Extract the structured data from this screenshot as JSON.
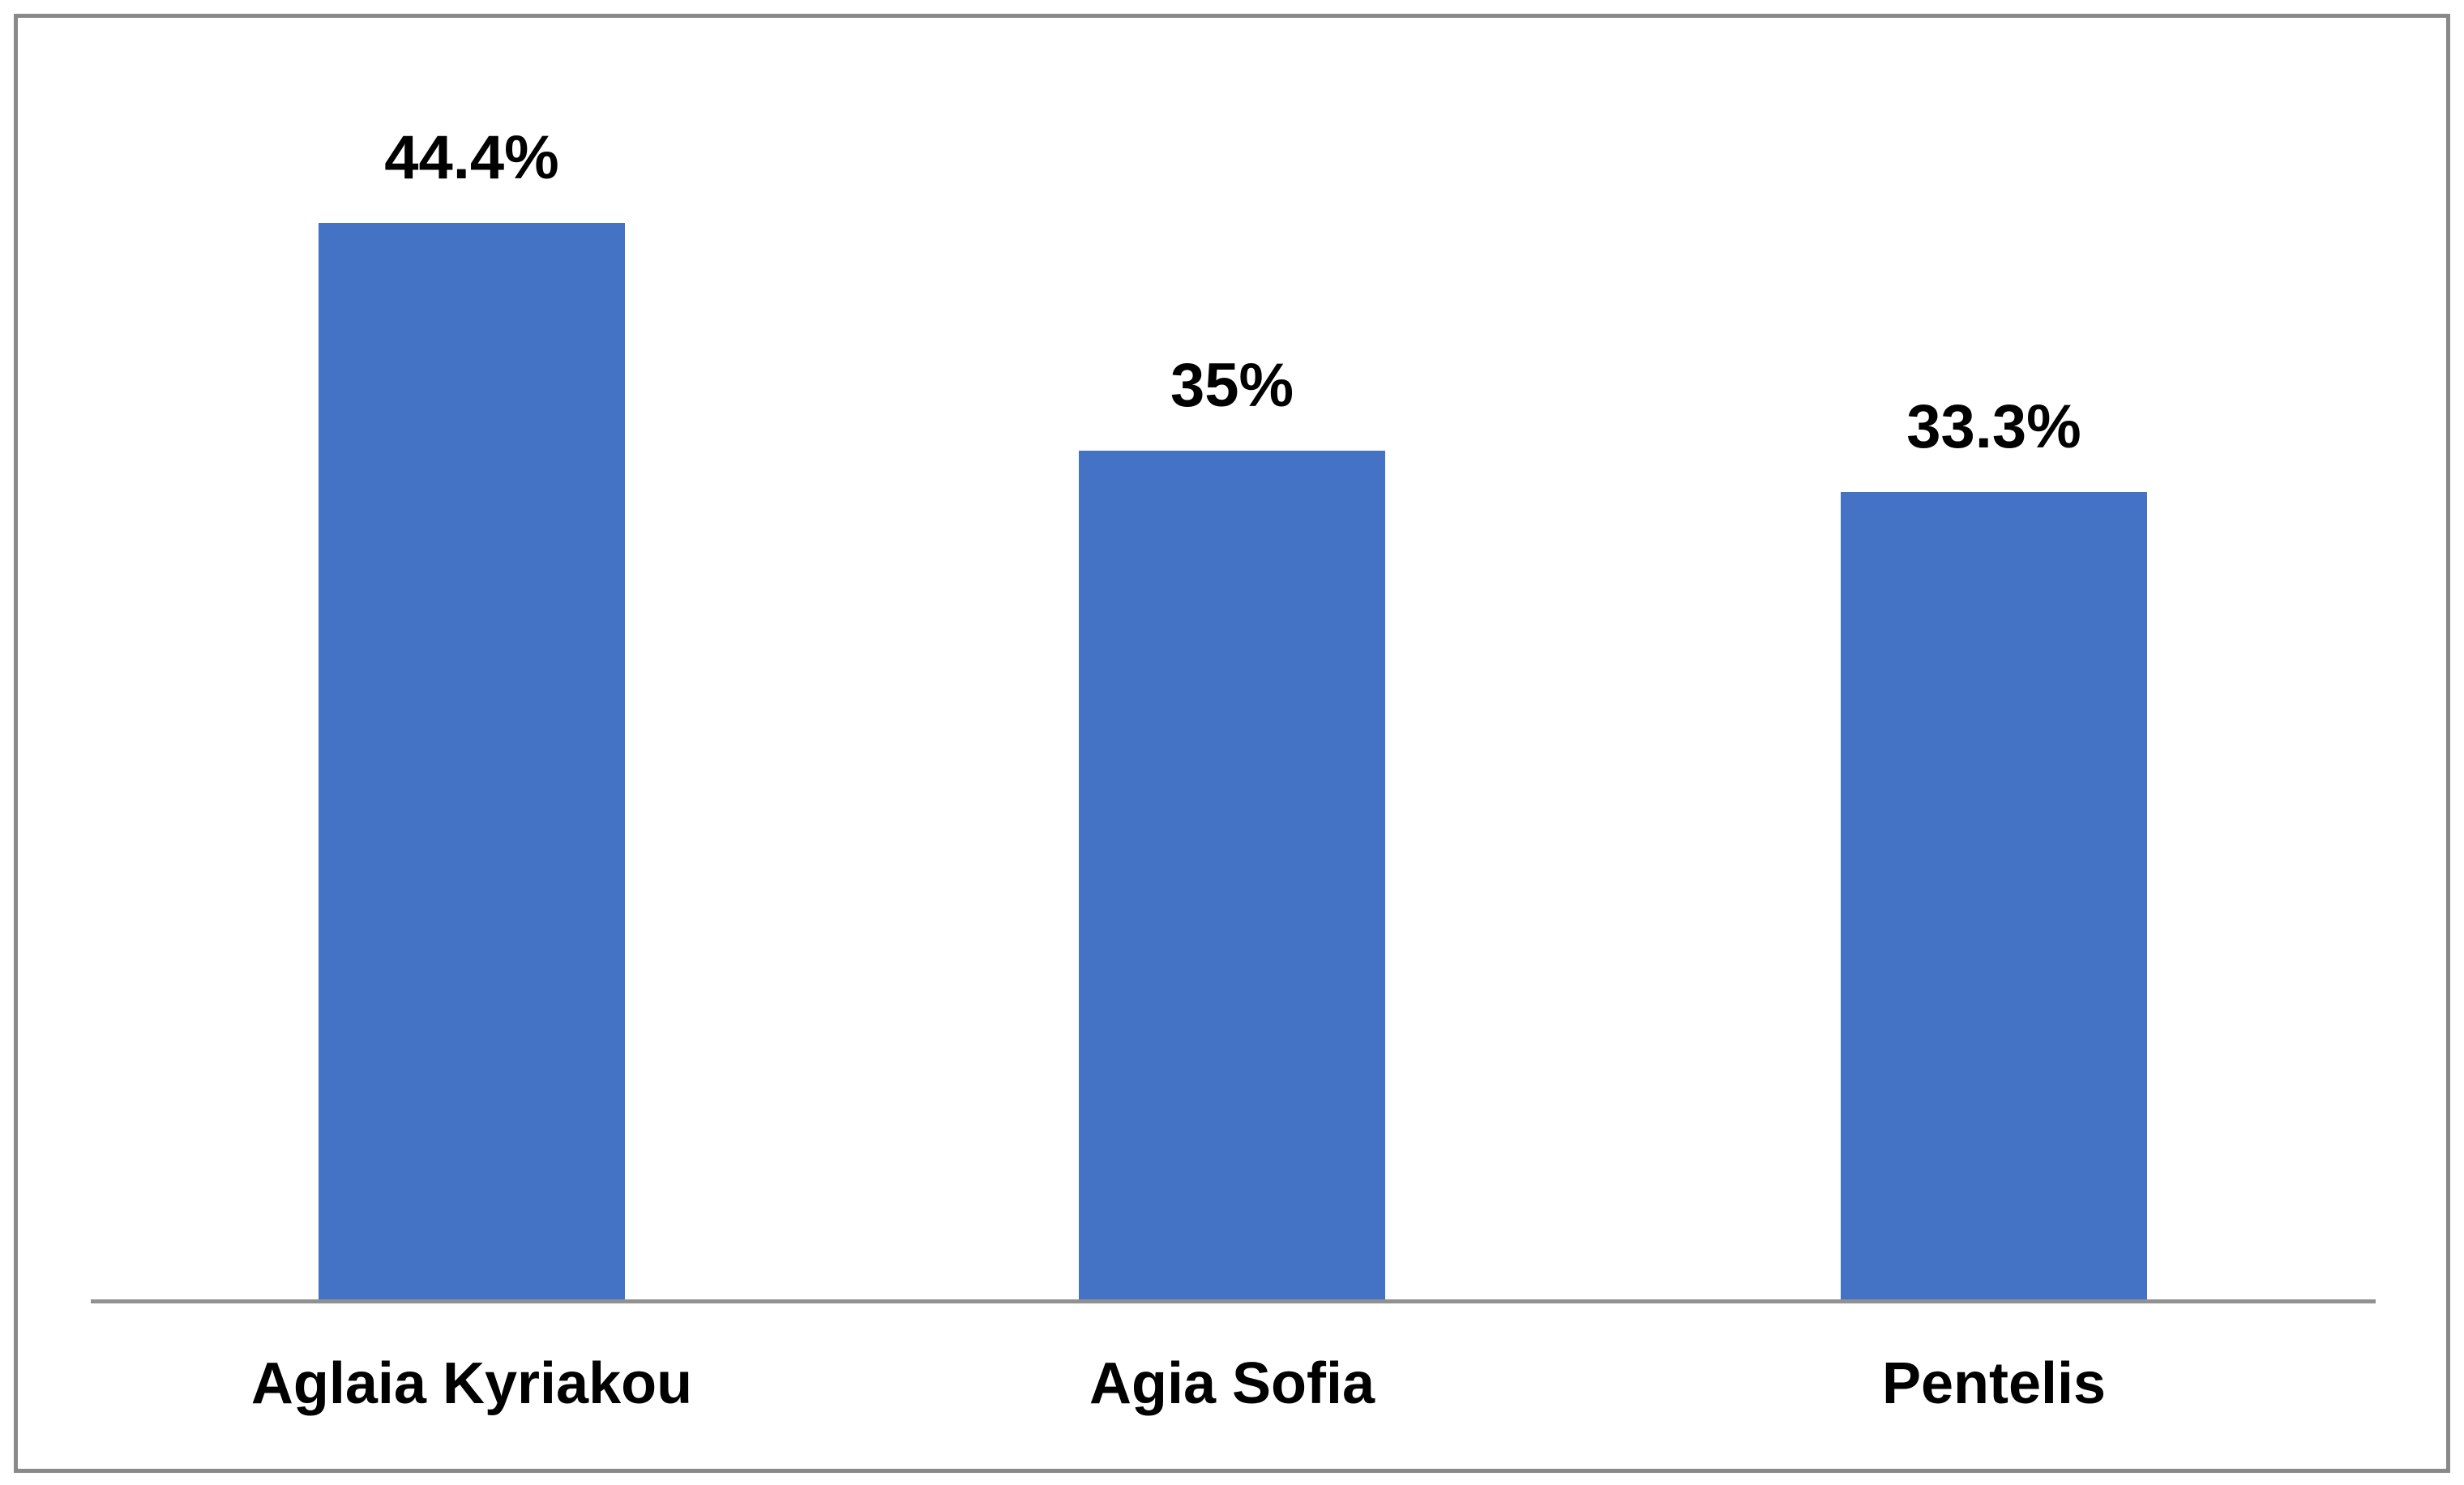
{
  "chart_data": {
    "type": "bar",
    "title": "",
    "xlabel": "",
    "ylabel": "",
    "categories": [
      "Aglaia Kyriakou",
      "Agia Sofia",
      "Pentelis"
    ],
    "values": [
      44.4,
      35,
      33.3
    ],
    "value_labels": [
      "44.4%",
      "35%",
      "33.3%"
    ],
    "series": [
      {
        "name": "",
        "values": [
          44.4,
          35,
          33.3
        ]
      }
    ],
    "unit": "percent",
    "ylim": [
      0,
      50
    ],
    "grid": false,
    "legend_position": "none",
    "bar_color": "#4472C4",
    "axis_line_color": "#919191",
    "frame_border_color": "#898989",
    "label_text_color": "#000000",
    "background_color": "#FFFFFF"
  }
}
